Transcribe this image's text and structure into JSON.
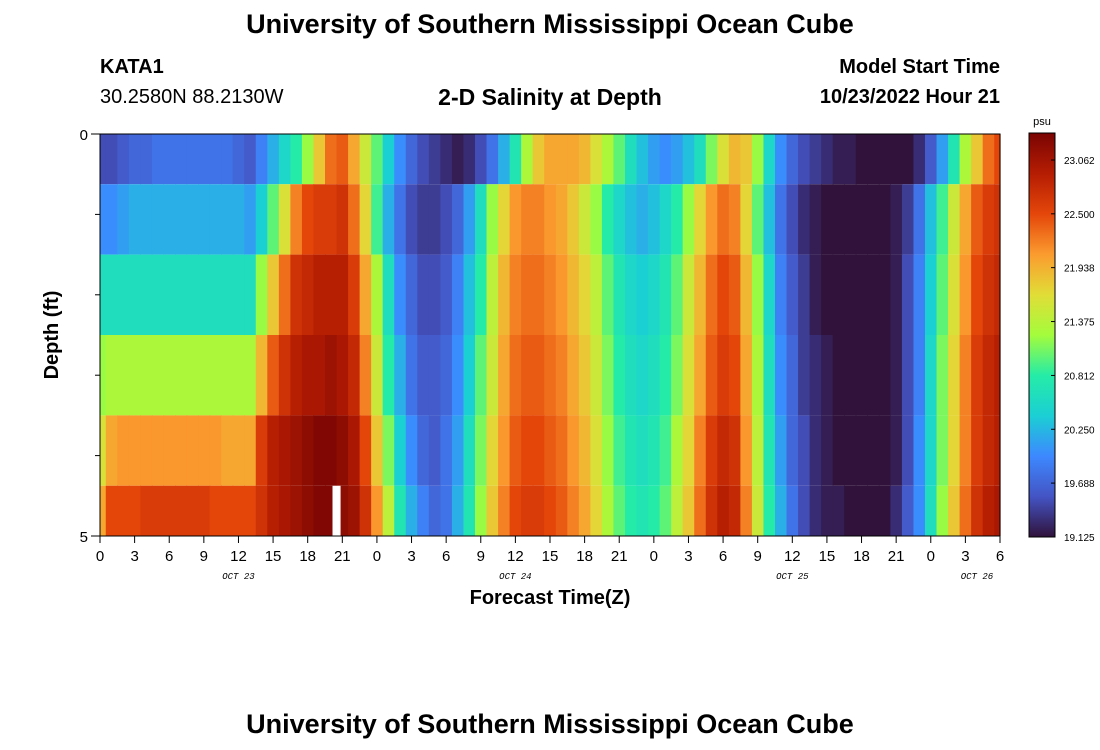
{
  "header": {
    "title": "University of Southern Mississippi Ocean Cube",
    "station_id": "KATA1",
    "station_coords": "30.2580N  88.2130W",
    "subtitle": "2-D Salinity at Depth",
    "model_start_label": "Model Start Time",
    "model_start_value": "10/23/2022 Hour 21"
  },
  "footer": {
    "title": "University of Southern Mississippi Ocean Cube"
  },
  "chart_data": {
    "type": "heatmap",
    "title": "2-D Salinity at Depth",
    "xlabel": "Forecast Time(Z)",
    "ylabel": "Depth (ft)",
    "x_tick_labels": [
      "0",
      "3",
      "6",
      "9",
      "12",
      "15",
      "18",
      "21",
      "0",
      "3",
      "6",
      "9",
      "12",
      "15",
      "18",
      "21",
      "0",
      "3",
      "6",
      "9",
      "12",
      "15",
      "18",
      "21",
      "0",
      "3",
      "6"
    ],
    "x_hour_range": [
      0,
      78
    ],
    "day_labels": [
      {
        "label": "OCT 23",
        "hour": 12
      },
      {
        "label": "OCT 24",
        "hour": 36
      },
      {
        "label": "OCT 25",
        "hour": 60
      },
      {
        "label": "OCT 26",
        "hour": 76
      }
    ],
    "y_tick_labels": [
      "0",
      "5"
    ],
    "y_range_ft": [
      0,
      5
    ],
    "depth_layers_ft": [
      0.25,
      1.0,
      2.0,
      3.0,
      4.0,
      4.75
    ],
    "colorbar": {
      "unit": "psu",
      "min": 19.125,
      "max": 23.344,
      "tick_labels": [
        "23.062",
        "22.500",
        "21.938",
        "21.375",
        "20.812",
        "20.250",
        "19.688",
        "19.125"
      ]
    },
    "missing_marker": {
      "hour": 20.5,
      "layer_index": 5
    },
    "hourly_step": 1,
    "salinity_psu_by_layer": [
      [
        19.5,
        19.5,
        19.6,
        19.7,
        19.7,
        19.8,
        19.8,
        19.8,
        19.8,
        19.8,
        19.8,
        19.8,
        19.7,
        19.6,
        19.9,
        20.2,
        20.5,
        20.8,
        21.2,
        21.8,
        22.3,
        22.4,
        22.0,
        21.5,
        21.0,
        20.4,
        20.0,
        19.7,
        19.5,
        19.4,
        19.3,
        19.2,
        19.3,
        19.5,
        19.8,
        20.2,
        20.7,
        21.3,
        21.8,
        22.0,
        22.0,
        22.0,
        21.9,
        21.6,
        21.3,
        21.0,
        20.6,
        20.3,
        20.1,
        20.0,
        20.1,
        20.3,
        20.6,
        21.1,
        21.6,
        21.9,
        21.8,
        21.2,
        20.5,
        20.0,
        19.7,
        19.5,
        19.4,
        19.3,
        19.2,
        19.2,
        19.1,
        19.1,
        19.1,
        19.1,
        19.1,
        19.3,
        19.6,
        20.1,
        20.7,
        21.3,
        21.8,
        22.3,
        22.5
      ],
      [
        20.0,
        20.0,
        20.1,
        20.2,
        20.2,
        20.2,
        20.2,
        20.2,
        20.2,
        20.2,
        20.2,
        20.2,
        20.2,
        20.1,
        20.4,
        21.0,
        21.6,
        22.2,
        22.5,
        22.6,
        22.6,
        22.7,
        22.3,
        21.7,
        20.9,
        20.2,
        19.8,
        19.5,
        19.4,
        19.4,
        19.5,
        19.7,
        20.1,
        20.6,
        21.2,
        21.7,
        22.1,
        22.2,
        22.2,
        22.1,
        22.0,
        21.8,
        21.5,
        21.2,
        20.8,
        20.5,
        20.3,
        20.2,
        20.3,
        20.5,
        20.8,
        21.2,
        21.7,
        22.1,
        22.3,
        22.2,
        21.7,
        21.0,
        20.3,
        19.8,
        19.5,
        19.3,
        19.2,
        19.1,
        19.1,
        19.1,
        19.1,
        19.1,
        19.1,
        19.2,
        19.4,
        19.8,
        20.3,
        20.9,
        21.5,
        22.0,
        22.4,
        22.6,
        22.7
      ],
      [
        20.6,
        20.6,
        20.6,
        20.6,
        20.6,
        20.6,
        20.6,
        20.6,
        20.6,
        20.6,
        20.6,
        20.6,
        20.6,
        20.6,
        21.2,
        21.8,
        22.3,
        22.7,
        22.8,
        22.9,
        22.9,
        22.9,
        22.6,
        22.0,
        21.3,
        20.6,
        20.0,
        19.7,
        19.5,
        19.5,
        19.6,
        19.9,
        20.3,
        20.8,
        21.4,
        21.9,
        22.2,
        22.3,
        22.3,
        22.2,
        22.1,
        21.9,
        21.7,
        21.4,
        21.0,
        20.7,
        20.5,
        20.4,
        20.5,
        20.7,
        21.0,
        21.5,
        21.9,
        22.3,
        22.5,
        22.4,
        21.9,
        21.2,
        20.5,
        19.9,
        19.6,
        19.4,
        19.2,
        19.1,
        19.1,
        19.1,
        19.1,
        19.1,
        19.1,
        19.2,
        19.5,
        19.9,
        20.4,
        21.0,
        21.6,
        22.1,
        22.5,
        22.7,
        22.8
      ],
      [
        21.2,
        21.3,
        21.3,
        21.3,
        21.3,
        21.3,
        21.3,
        21.3,
        21.3,
        21.3,
        21.3,
        21.3,
        21.3,
        21.3,
        21.9,
        22.4,
        22.7,
        22.9,
        23.0,
        23.0,
        23.1,
        23.0,
        22.8,
        22.2,
        21.5,
        20.8,
        20.2,
        19.8,
        19.6,
        19.6,
        19.7,
        20.0,
        20.4,
        21.0,
        21.5,
        22.0,
        22.3,
        22.4,
        22.4,
        22.3,
        22.2,
        22.0,
        21.8,
        21.5,
        21.1,
        20.8,
        20.6,
        20.5,
        20.6,
        20.8,
        21.1,
        21.6,
        22.0,
        22.4,
        22.6,
        22.5,
        22.0,
        21.3,
        20.6,
        20.0,
        19.7,
        19.4,
        19.3,
        19.2,
        19.1,
        19.1,
        19.1,
        19.1,
        19.1,
        19.2,
        19.5,
        19.9,
        20.5,
        21.1,
        21.7,
        22.2,
        22.6,
        22.8,
        22.9
      ],
      [
        21.6,
        22.0,
        22.1,
        22.1,
        22.1,
        22.1,
        22.1,
        22.1,
        22.1,
        22.1,
        22.1,
        22.0,
        22.0,
        22.0,
        22.6,
        22.9,
        23.0,
        23.1,
        23.2,
        23.3,
        23.3,
        23.2,
        23.0,
        22.5,
        21.8,
        21.1,
        20.4,
        20.0,
        19.7,
        19.6,
        19.8,
        20.1,
        20.6,
        21.1,
        21.7,
        22.1,
        22.4,
        22.5,
        22.5,
        22.4,
        22.3,
        22.1,
        21.9,
        21.6,
        21.2,
        20.9,
        20.7,
        20.6,
        20.7,
        20.9,
        21.3,
        21.7,
        22.2,
        22.6,
        22.8,
        22.7,
        22.1,
        21.4,
        20.7,
        20.1,
        19.7,
        19.5,
        19.3,
        19.2,
        19.1,
        19.1,
        19.1,
        19.1,
        19.1,
        19.2,
        19.5,
        20.0,
        20.5,
        21.1,
        21.7,
        22.2,
        22.6,
        22.8,
        22.9
      ],
      [
        22.0,
        22.5,
        22.5,
        22.5,
        22.6,
        22.6,
        22.6,
        22.6,
        22.6,
        22.6,
        22.5,
        22.5,
        22.5,
        22.5,
        22.7,
        22.9,
        23.0,
        23.1,
        23.2,
        23.3,
        23.3,
        23.2,
        23.1,
        22.7,
        22.1,
        21.4,
        20.7,
        20.2,
        19.9,
        19.7,
        19.8,
        20.2,
        20.7,
        21.2,
        21.8,
        22.2,
        22.5,
        22.6,
        22.6,
        22.5,
        22.4,
        22.2,
        22.0,
        21.7,
        21.3,
        21.0,
        20.8,
        20.7,
        20.8,
        21.0,
        21.4,
        21.8,
        22.3,
        22.7,
        22.9,
        22.8,
        22.2,
        21.5,
        20.8,
        20.2,
        19.8,
        19.5,
        19.3,
        19.2,
        19.2,
        19.1,
        19.1,
        19.1,
        19.1,
        19.3,
        19.6,
        20.0,
        20.6,
        21.2,
        21.8,
        22.3,
        22.7,
        22.9,
        23.0
      ]
    ]
  }
}
